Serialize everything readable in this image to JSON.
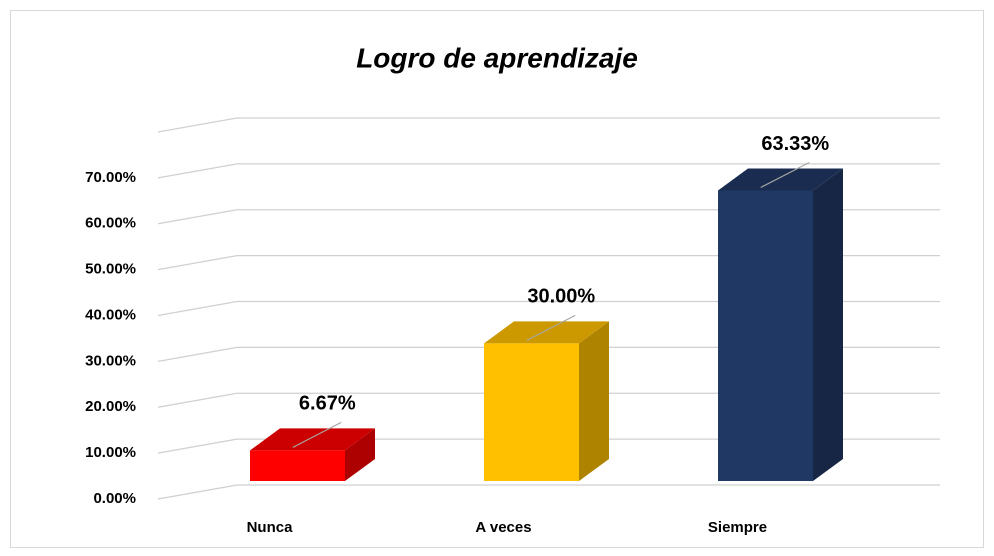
{
  "chart_data": {
    "type": "bar3d",
    "title": "Logro de aprendizaje",
    "categories": [
      "Nunca",
      "A veces",
      "Siempre"
    ],
    "values": [
      6.67,
      30.0,
      63.33
    ],
    "value_labels": [
      "6.67%",
      "30.00%",
      "63.33%"
    ],
    "colors": [
      "#ff0000",
      "#ffc000",
      "#203864"
    ],
    "ylim": [
      0,
      80
    ],
    "yticks": [
      {
        "value": 0,
        "label": "0.00%"
      },
      {
        "value": 10,
        "label": "10.00%"
      },
      {
        "value": 20,
        "label": "20.00%"
      },
      {
        "value": 30,
        "label": "30.00%"
      },
      {
        "value": 40,
        "label": "40.00%"
      },
      {
        "value": 50,
        "label": "50.00%"
      },
      {
        "value": 60,
        "label": "60.00%"
      },
      {
        "value": 70,
        "label": "70.00%"
      }
    ],
    "grid": true
  }
}
